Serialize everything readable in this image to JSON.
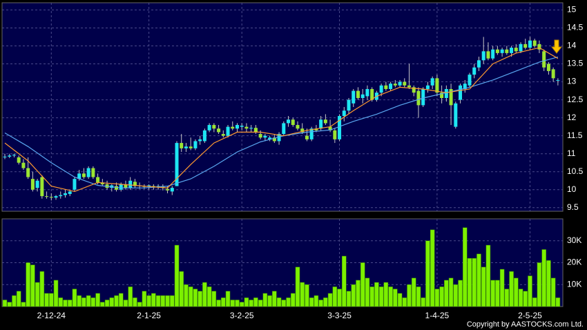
{
  "chart_data": [
    {
      "type": "candlestick",
      "up_color": "#1ee6f2",
      "down_color": "#9be532",
      "wick_color": "#c8c8c8",
      "categories": [
        null,
        null,
        null,
        null,
        null,
        null,
        null,
        null,
        null,
        null,
        "2-12-24",
        null,
        null,
        null,
        null,
        null,
        null,
        null,
        null,
        null,
        null,
        null,
        null,
        null,
        null,
        null,
        null,
        null,
        null,
        null,
        null,
        "2-1-25",
        null,
        null,
        null,
        null,
        null,
        null,
        null,
        null,
        null,
        null,
        null,
        null,
        null,
        null,
        null,
        null,
        null,
        null,
        null,
        "3-2-25",
        null,
        null,
        null,
        null,
        null,
        null,
        null,
        null,
        null,
        null,
        null,
        null,
        null,
        null,
        null,
        null,
        null,
        null,
        null,
        null,
        "3-3-25",
        null,
        null,
        null,
        null,
        null,
        null,
        null,
        null,
        null,
        null,
        null,
        null,
        null,
        null,
        null,
        null,
        null,
        null,
        null,
        null,
        "1-4-25",
        null,
        null,
        null,
        null,
        null,
        null,
        null,
        null,
        null,
        null,
        null,
        null,
        null,
        null,
        null,
        null,
        null,
        null,
        null,
        "2-5-25",
        null,
        null,
        null,
        null,
        null,
        null
      ],
      "ohlc": [
        [
          10.9,
          11.0,
          10.85,
          10.92
        ],
        [
          10.92,
          11.0,
          10.88,
          10.95
        ],
        [
          10.95,
          11.0,
          10.9,
          10.97
        ],
        [
          10.9,
          10.95,
          10.7,
          10.75
        ],
        [
          10.75,
          10.85,
          10.55,
          10.6
        ],
        [
          10.6,
          10.9,
          10.3,
          10.35
        ],
        [
          10.3,
          10.5,
          9.95,
          10.0
        ],
        [
          10.05,
          10.3,
          9.95,
          10.25
        ],
        [
          10.35,
          10.4,
          9.75,
          9.82
        ],
        [
          9.82,
          9.95,
          9.75,
          9.8
        ],
        [
          9.8,
          9.9,
          9.7,
          9.78
        ],
        [
          9.78,
          9.85,
          9.72,
          9.82
        ],
        [
          9.82,
          9.95,
          9.75,
          9.85
        ],
        [
          9.85,
          10.0,
          9.78,
          9.9
        ],
        [
          9.88,
          10.0,
          9.82,
          9.95
        ],
        [
          10.0,
          10.35,
          9.95,
          10.3
        ],
        [
          10.3,
          10.55,
          10.25,
          10.45
        ],
        [
          10.45,
          10.6,
          10.3,
          10.35
        ],
        [
          10.35,
          10.65,
          10.3,
          10.6
        ],
        [
          10.6,
          10.65,
          10.3,
          10.35
        ],
        [
          10.35,
          10.45,
          10.15,
          10.2
        ],
        [
          10.2,
          10.3,
          10.1,
          10.15
        ],
        [
          10.15,
          10.25,
          10.0,
          10.05
        ],
        [
          10.05,
          10.15,
          9.95,
          10.12
        ],
        [
          10.1,
          10.2,
          9.95,
          10.0
        ],
        [
          10.0,
          10.2,
          9.95,
          10.15
        ],
        [
          10.15,
          10.25,
          10.0,
          10.05
        ],
        [
          10.05,
          10.35,
          10.0,
          10.25
        ],
        [
          10.22,
          10.3,
          10.05,
          10.1
        ],
        [
          10.1,
          10.2,
          10.02,
          10.12
        ],
        [
          10.1,
          10.15,
          10.02,
          10.08
        ],
        [
          10.08,
          10.15,
          10.0,
          10.12
        ],
        [
          10.1,
          10.15,
          10.0,
          10.06
        ],
        [
          10.06,
          10.15,
          10.0,
          10.1
        ],
        [
          10.1,
          10.15,
          9.98,
          10.05
        ],
        [
          10.02,
          10.1,
          9.9,
          9.98
        ],
        [
          9.95,
          10.1,
          9.85,
          10.05
        ],
        [
          10.1,
          11.35,
          10.1,
          11.3
        ],
        [
          11.3,
          11.55,
          11.05,
          11.15
        ],
        [
          11.15,
          11.3,
          11.05,
          11.2
        ],
        [
          11.2,
          11.45,
          11.1,
          11.15
        ],
        [
          11.15,
          11.4,
          11.1,
          11.35
        ],
        [
          11.35,
          11.5,
          11.25,
          11.4
        ],
        [
          11.35,
          11.7,
          11.3,
          11.65
        ],
        [
          11.65,
          11.85,
          11.6,
          11.8
        ],
        [
          11.8,
          11.85,
          11.6,
          11.7
        ],
        [
          11.7,
          11.8,
          11.55,
          11.6
        ],
        [
          11.55,
          11.65,
          11.45,
          11.5
        ],
        [
          11.5,
          11.8,
          11.45,
          11.75
        ],
        [
          11.75,
          11.9,
          11.65,
          11.7
        ],
        [
          11.7,
          11.85,
          11.6,
          11.8
        ],
        [
          11.75,
          11.85,
          11.65,
          11.78
        ],
        [
          11.75,
          11.85,
          11.6,
          11.7
        ],
        [
          11.7,
          11.8,
          11.6,
          11.72
        ],
        [
          11.72,
          11.8,
          11.55,
          11.6
        ],
        [
          11.55,
          11.65,
          11.4,
          11.45
        ],
        [
          11.45,
          11.55,
          11.35,
          11.5
        ],
        [
          11.4,
          11.5,
          11.35,
          11.45
        ],
        [
          11.45,
          11.55,
          11.3,
          11.35
        ],
        [
          11.35,
          11.6,
          11.25,
          11.55
        ],
        [
          11.55,
          11.9,
          11.5,
          11.85
        ],
        [
          11.85,
          12.05,
          11.75,
          11.95
        ],
        [
          11.95,
          12.0,
          11.75,
          11.8
        ],
        [
          11.8,
          11.9,
          11.65,
          11.7
        ],
        [
          11.7,
          11.85,
          11.55,
          11.6
        ],
        [
          11.5,
          11.7,
          11.35,
          11.4
        ],
        [
          11.4,
          11.75,
          11.35,
          11.7
        ],
        [
          11.7,
          11.8,
          11.6,
          11.65
        ],
        [
          11.7,
          12.05,
          11.65,
          11.95
        ],
        [
          11.95,
          12.1,
          11.8,
          11.85
        ],
        [
          11.75,
          11.95,
          11.6,
          11.65
        ],
        [
          11.65,
          11.7,
          11.3,
          11.4
        ],
        [
          11.4,
          12.1,
          11.35,
          12.05
        ],
        [
          12.05,
          12.3,
          11.9,
          12.2
        ],
        [
          12.2,
          12.55,
          12.1,
          12.5
        ],
        [
          12.4,
          12.8,
          12.3,
          12.75
        ],
        [
          12.75,
          12.85,
          12.5,
          12.55
        ],
        [
          12.55,
          12.8,
          12.4,
          12.65
        ],
        [
          12.6,
          12.9,
          12.5,
          12.8
        ],
        [
          12.8,
          12.85,
          12.45,
          12.5
        ],
        [
          12.5,
          12.75,
          12.45,
          12.7
        ],
        [
          12.7,
          12.95,
          12.6,
          12.9
        ],
        [
          12.9,
          13.0,
          12.75,
          12.8
        ],
        [
          12.8,
          13.0,
          12.75,
          12.95
        ],
        [
          12.95,
          13.05,
          12.85,
          12.9
        ],
        [
          12.9,
          13.05,
          12.85,
          13.0
        ],
        [
          13.0,
          13.1,
          12.85,
          12.9
        ],
        [
          12.9,
          13.5,
          12.8,
          12.85
        ],
        [
          12.85,
          12.9,
          12.6,
          12.7
        ],
        [
          12.75,
          12.85,
          12.0,
          12.35
        ],
        [
          12.35,
          12.85,
          12.3,
          12.8
        ],
        [
          12.8,
          13.0,
          12.7,
          12.9
        ],
        [
          12.9,
          13.15,
          12.8,
          13.1
        ],
        [
          13.1,
          13.2,
          12.6,
          12.7
        ],
        [
          12.7,
          12.9,
          12.4,
          12.55
        ],
        [
          12.55,
          12.9,
          12.45,
          12.8
        ],
        [
          12.8,
          12.95,
          11.8,
          12.35
        ],
        [
          11.75,
          12.45,
          11.7,
          12.4
        ],
        [
          12.5,
          12.95,
          12.4,
          12.9
        ],
        [
          12.8,
          13.05,
          12.7,
          12.95
        ],
        [
          12.9,
          13.25,
          12.85,
          13.2
        ],
        [
          13.2,
          13.5,
          13.1,
          13.4
        ],
        [
          13.4,
          13.7,
          13.3,
          13.6
        ],
        [
          13.6,
          14.25,
          13.5,
          13.85
        ],
        [
          13.85,
          14.1,
          13.6,
          13.65
        ],
        [
          13.65,
          14.0,
          13.6,
          13.9
        ],
        [
          13.9,
          14.0,
          13.75,
          13.8
        ],
        [
          13.8,
          13.95,
          13.7,
          13.9
        ],
        [
          13.9,
          14.0,
          13.75,
          13.8
        ],
        [
          13.8,
          14.0,
          13.7,
          13.95
        ],
        [
          13.95,
          14.05,
          13.8,
          13.85
        ],
        [
          13.85,
          14.1,
          13.8,
          14.05
        ],
        [
          14.05,
          14.2,
          13.9,
          13.95
        ],
        [
          13.95,
          14.25,
          13.9,
          14.15
        ],
        [
          14.15,
          14.2,
          13.95,
          14.0
        ],
        [
          14.05,
          14.15,
          13.8,
          13.9
        ],
        [
          13.85,
          13.9,
          13.3,
          13.4
        ],
        [
          13.5,
          13.55,
          13.2,
          13.3
        ],
        [
          13.35,
          13.4,
          13.0,
          13.1
        ],
        [
          13.05,
          13.1,
          12.9,
          13.05
        ]
      ],
      "lines": [
        {
          "color": "#5aa8f0",
          "x": [
            0,
            5,
            10,
            15,
            20,
            25,
            30,
            35,
            40,
            45,
            50,
            55,
            60,
            65,
            70,
            75,
            80,
            85,
            90,
            95,
            100,
            105,
            110,
            115,
            119
          ],
          "values": [
            11.58,
            11.2,
            10.75,
            10.35,
            10.12,
            10.05,
            10.05,
            10.1,
            10.3,
            10.65,
            11.05,
            11.33,
            11.5,
            11.6,
            11.66,
            11.9,
            12.1,
            12.35,
            12.55,
            12.7,
            12.85,
            13.05,
            13.3,
            13.55,
            13.69
          ]
        },
        {
          "color": "#ff9a30",
          "x": [
            0,
            5,
            10,
            15,
            20,
            25,
            30,
            35,
            40,
            45,
            50,
            55,
            60,
            65,
            70,
            75,
            80,
            85,
            90,
            95,
            100,
            105,
            110,
            115,
            119
          ],
          "values": [
            11.3,
            10.8,
            10.1,
            9.95,
            10.2,
            10.15,
            10.1,
            10.05,
            10.7,
            11.3,
            11.6,
            11.6,
            11.5,
            11.65,
            11.75,
            12.2,
            12.6,
            12.85,
            12.8,
            12.7,
            12.8,
            13.5,
            13.8,
            13.95,
            13.65
          ]
        }
      ],
      "ylim": [
        9.4,
        15.2
      ],
      "yticks": [
        9.5,
        10,
        10.5,
        11,
        11.5,
        12,
        12.5,
        13,
        13.5,
        14,
        14.5,
        15
      ],
      "grid": true
    },
    {
      "type": "bar",
      "color": "#7cf000",
      "values": [
        3000,
        2000,
        5000,
        7000,
        2000,
        20000,
        19000,
        11000,
        16000,
        6000,
        6000,
        12000,
        4000,
        3000,
        3000,
        8000,
        5000,
        4000,
        5000,
        4000,
        6000,
        2000,
        3000,
        4000,
        5000,
        6000,
        3000,
        9000,
        4000,
        2000,
        7000,
        5000,
        6000,
        5000,
        5000,
        5000,
        5000,
        28000,
        16000,
        10000,
        9000,
        8000,
        7000,
        11000,
        9000,
        7000,
        3000,
        4000,
        7000,
        3000,
        3000,
        2000,
        4000,
        3000,
        4000,
        3000,
        6000,
        5000,
        7000,
        4000,
        3000,
        4000,
        6000,
        18000,
        11000,
        10000,
        4000,
        5000,
        3000,
        4000,
        6000,
        9000,
        8000,
        23000,
        7000,
        10000,
        12000,
        20000,
        13000,
        9000,
        11000,
        9000,
        11000,
        9000,
        8000,
        6000,
        4000,
        10000,
        13000,
        9000,
        4000,
        30000,
        35000,
        8000,
        9000,
        12000,
        13000,
        10000,
        12000,
        36000,
        22000,
        22000,
        24000,
        18000,
        28000,
        12000,
        12000,
        17000,
        8000,
        16000,
        13000,
        8000,
        7000,
        14000,
        4000,
        20000,
        26000,
        21000,
        13000,
        4000
      ],
      "ylim": [
        0,
        40000
      ],
      "yticks": [
        {
          "value": 10000,
          "label": "10K"
        },
        {
          "value": 20000,
          "label": "20K"
        },
        {
          "value": 30000,
          "label": "30K"
        }
      ],
      "grid": true
    }
  ],
  "copyright": "Copyright by AASTOCKS.com Ltd."
}
